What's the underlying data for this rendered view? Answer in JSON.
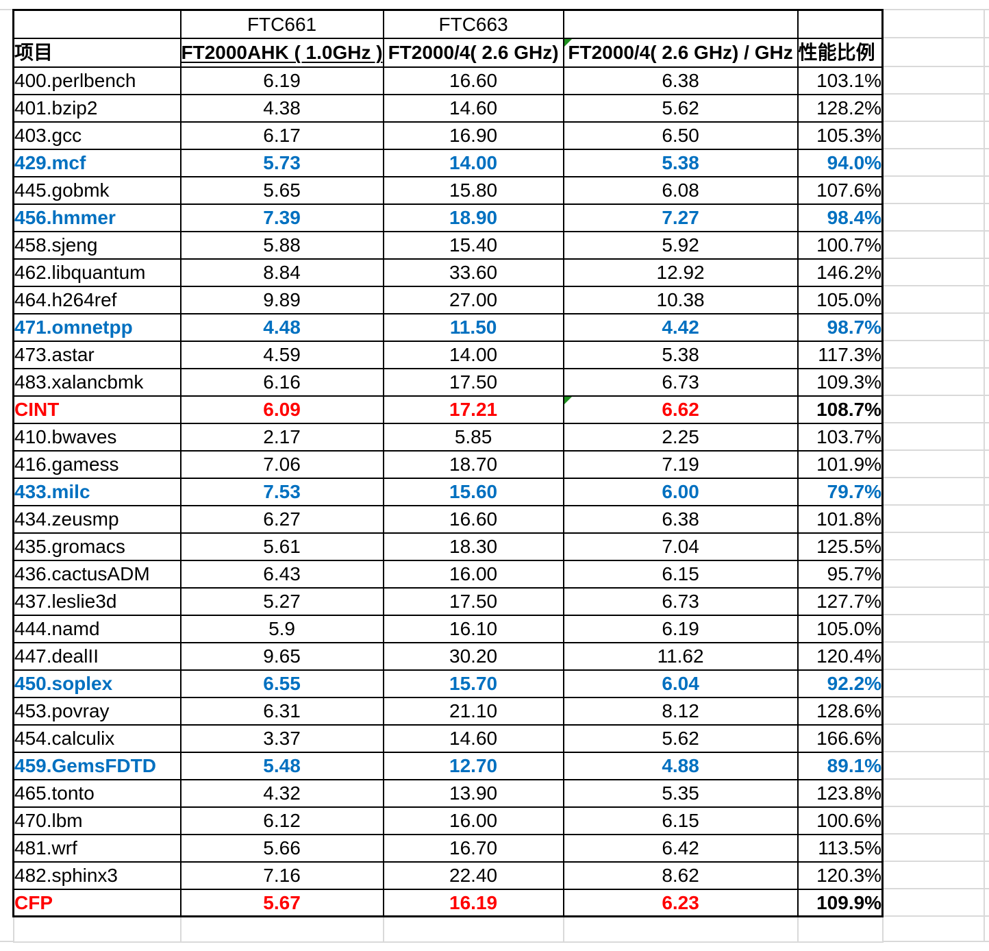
{
  "colors": {
    "text": "#000000",
    "blue_accent": "#0070C0",
    "red_accent": "#FF0000",
    "table_border": "#000000",
    "gridline": "#D9D9D9",
    "error_indicator_green": "#1E8F1E",
    "background": "#FFFFFF"
  },
  "table": {
    "header_row1": {
      "ftc661": "FTC661",
      "ftc663": "FTC663"
    },
    "header_row2": {
      "items_label": "项目",
      "ftc661_spec": "FT2000AHK ( 1.0GHz )",
      "ftc663_spec": "FT2000/4( 2.6 GHz)",
      "per_ghz_label": "FT2000/4( 2.6 GHz) / GHz",
      "ratio_label": "性能比例"
    },
    "markers": {
      "header_per_ghz": true,
      "cint_per_ghz": true
    },
    "rows": [
      {
        "name": "400.perlbench",
        "ftc661": "6.19",
        "ftc663": "16.60",
        "per_ghz": "6.38",
        "ratio": "103.1%",
        "style": "normal"
      },
      {
        "name": "401.bzip2",
        "ftc661": "4.38",
        "ftc663": "14.60",
        "per_ghz": "5.62",
        "ratio": "128.2%",
        "style": "normal"
      },
      {
        "name": "403.gcc",
        "ftc661": "6.17",
        "ftc663": "16.90",
        "per_ghz": "6.50",
        "ratio": "105.3%",
        "style": "normal"
      },
      {
        "name": "429.mcf",
        "ftc661": "5.73",
        "ftc663": "14.00",
        "per_ghz": "5.38",
        "ratio": "94.0%",
        "style": "blue"
      },
      {
        "name": "445.gobmk",
        "ftc661": "5.65",
        "ftc663": "15.80",
        "per_ghz": "6.08",
        "ratio": "107.6%",
        "style": "normal"
      },
      {
        "name": "456.hmmer",
        "ftc661": "7.39",
        "ftc663": "18.90",
        "per_ghz": "7.27",
        "ratio": "98.4%",
        "style": "blue"
      },
      {
        "name": "458.sjeng",
        "ftc661": "5.88",
        "ftc663": "15.40",
        "per_ghz": "5.92",
        "ratio": "100.7%",
        "style": "normal"
      },
      {
        "name": "462.libquantum",
        "ftc661": "8.84",
        "ftc663": "33.60",
        "per_ghz": "12.92",
        "ratio": "146.2%",
        "style": "normal"
      },
      {
        "name": "464.h264ref",
        "ftc661": "9.89",
        "ftc663": "27.00",
        "per_ghz": "10.38",
        "ratio": "105.0%",
        "style": "normal"
      },
      {
        "name": "471.omnetpp",
        "ftc661": "4.48",
        "ftc663": "11.50",
        "per_ghz": "4.42",
        "ratio": "98.7%",
        "style": "blue"
      },
      {
        "name": "473.astar",
        "ftc661": "4.59",
        "ftc663": "14.00",
        "per_ghz": "5.38",
        "ratio": "117.3%",
        "style": "normal"
      },
      {
        "name": "483.xalancbmk",
        "ftc661": "6.16",
        "ftc663": "17.50",
        "per_ghz": "6.73",
        "ratio": "109.3%",
        "style": "normal"
      },
      {
        "name": "CINT",
        "ftc661": "6.09",
        "ftc663": "17.21",
        "per_ghz": "6.62",
        "ratio": "108.7%",
        "style": "summary",
        "marker": true
      },
      {
        "name": "410.bwaves",
        "ftc661": "2.17",
        "ftc663": "5.85",
        "per_ghz": "2.25",
        "ratio": "103.7%",
        "style": "normal"
      },
      {
        "name": "416.gamess",
        "ftc661": "7.06",
        "ftc663": "18.70",
        "per_ghz": "7.19",
        "ratio": "101.9%",
        "style": "normal"
      },
      {
        "name": "433.milc",
        "ftc661": "7.53",
        "ftc663": "15.60",
        "per_ghz": "6.00",
        "ratio": "79.7%",
        "style": "blue"
      },
      {
        "name": "434.zeusmp",
        "ftc661": "6.27",
        "ftc663": "16.60",
        "per_ghz": "6.38",
        "ratio": "101.8%",
        "style": "normal"
      },
      {
        "name": "435.gromacs",
        "ftc661": "5.61",
        "ftc663": "18.30",
        "per_ghz": "7.04",
        "ratio": "125.5%",
        "style": "normal"
      },
      {
        "name": "436.cactusADM",
        "ftc661": "6.43",
        "ftc663": "16.00",
        "per_ghz": "6.15",
        "ratio": "95.7%",
        "style": "normal"
      },
      {
        "name": "437.leslie3d",
        "ftc661": "5.27",
        "ftc663": "17.50",
        "per_ghz": "6.73",
        "ratio": "127.7%",
        "style": "normal"
      },
      {
        "name": "444.namd",
        "ftc661": "5.9",
        "ftc663": "16.10",
        "per_ghz": "6.19",
        "ratio": "105.0%",
        "style": "normal"
      },
      {
        "name": "447.dealII",
        "ftc661": "9.65",
        "ftc663": "30.20",
        "per_ghz": "11.62",
        "ratio": "120.4%",
        "style": "normal"
      },
      {
        "name": "450.soplex",
        "ftc661": "6.55",
        "ftc663": "15.70",
        "per_ghz": "6.04",
        "ratio": "92.2%",
        "style": "blue"
      },
      {
        "name": "453.povray",
        "ftc661": "6.31",
        "ftc663": "21.10",
        "per_ghz": "8.12",
        "ratio": "128.6%",
        "style": "normal"
      },
      {
        "name": "454.calculix",
        "ftc661": "3.37",
        "ftc663": "14.60",
        "per_ghz": "5.62",
        "ratio": "166.6%",
        "style": "normal"
      },
      {
        "name": "459.GemsFDTD",
        "ftc661": "5.48",
        "ftc663": "12.70",
        "per_ghz": "4.88",
        "ratio": "89.1%",
        "style": "blue"
      },
      {
        "name": "465.tonto",
        "ftc661": "4.32",
        "ftc663": "13.90",
        "per_ghz": "5.35",
        "ratio": "123.8%",
        "style": "normal"
      },
      {
        "name": "470.lbm",
        "ftc661": "6.12",
        "ftc663": "16.00",
        "per_ghz": "6.15",
        "ratio": "100.6%",
        "style": "normal"
      },
      {
        "name": "481.wrf",
        "ftc661": "5.66",
        "ftc663": "16.70",
        "per_ghz": "6.42",
        "ratio": "113.5%",
        "style": "normal"
      },
      {
        "name": "482.sphinx3",
        "ftc661": "7.16",
        "ftc663": "22.40",
        "per_ghz": "8.62",
        "ratio": "120.3%",
        "style": "normal"
      },
      {
        "name": "CFP",
        "ftc661": "5.67",
        "ftc663": "16.19",
        "per_ghz": "6.23",
        "ratio": "109.9%",
        "style": "summary"
      }
    ]
  }
}
